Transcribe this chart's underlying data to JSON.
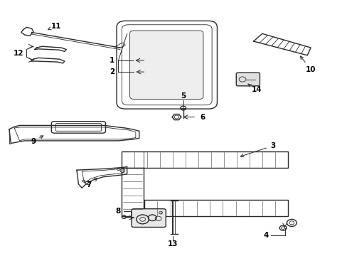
{
  "background_color": "#ffffff",
  "line_color": "#2a2a2a",
  "label_color": "#000000",
  "figsize": [
    4.89,
    3.6
  ],
  "dpi": 100,
  "lw_thin": 0.6,
  "lw_med": 1.0,
  "lw_thick": 1.4,
  "font_size": 7.5
}
